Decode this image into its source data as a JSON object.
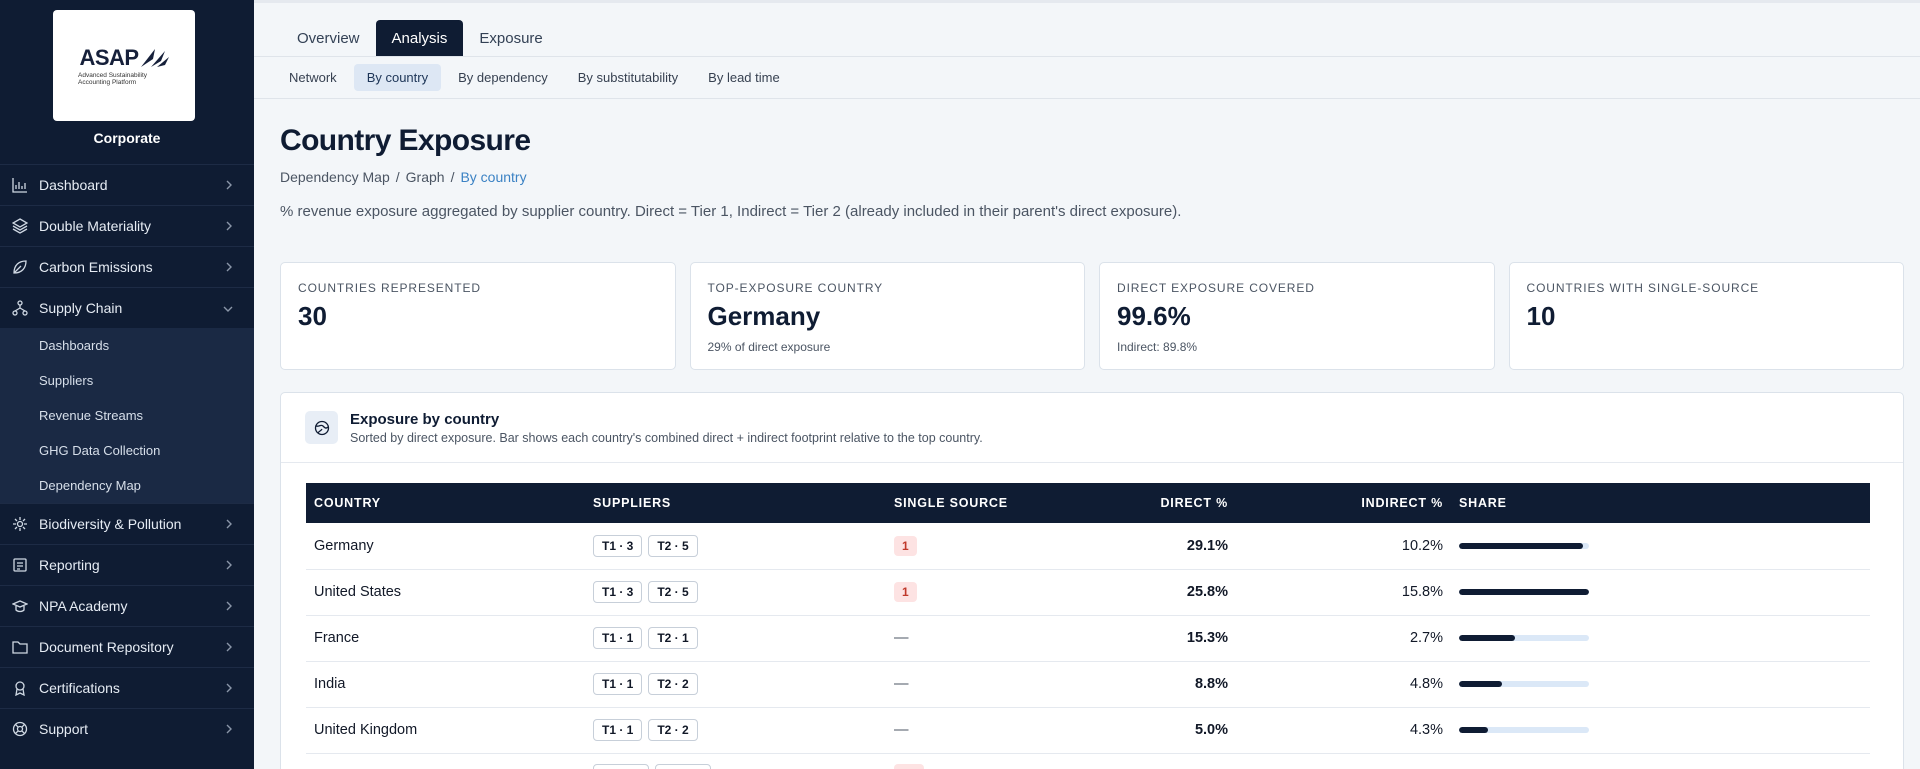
{
  "brand": {
    "logo_text": "ASAP",
    "logo_sub": "Advanced Sustainability Accounting Platform",
    "org": "Corporate"
  },
  "sidebar": {
    "items": [
      {
        "label": "Dashboard",
        "icon": "chart-icon"
      },
      {
        "label": "Double Materiality",
        "icon": "layers-icon"
      },
      {
        "label": "Carbon Emissions",
        "icon": "leaf-icon"
      },
      {
        "label": "Supply Chain",
        "icon": "network-icon",
        "expanded": true
      },
      {
        "label": "Biodiversity & Pollution",
        "icon": "bio-icon"
      },
      {
        "label": "Reporting",
        "icon": "report-icon"
      },
      {
        "label": "NPA Academy",
        "icon": "graduation-icon"
      },
      {
        "label": "Document Repository",
        "icon": "folder-icon"
      },
      {
        "label": "Certifications",
        "icon": "award-icon"
      },
      {
        "label": "Support",
        "icon": "lifebuoy-icon"
      }
    ],
    "supply_chain_sub": [
      "Dashboards",
      "Suppliers",
      "Revenue Streams",
      "GHG Data Collection",
      "Dependency Map"
    ]
  },
  "tabs": [
    "Overview",
    "Analysis",
    "Exposure"
  ],
  "active_tab": "Analysis",
  "subtabs": [
    "Network",
    "By country",
    "By dependency",
    "By substitutability",
    "By lead time"
  ],
  "active_subtab": "By country",
  "page": {
    "title": "Country Exposure",
    "breadcrumb": [
      "Dependency Map",
      "Graph",
      "By country"
    ],
    "description": "% revenue exposure aggregated by supplier country. Direct = Tier 1, Indirect = Tier 2 (already included in their parent's direct exposure)."
  },
  "kpis": [
    {
      "label": "COUNTRIES REPRESENTED",
      "value": "30",
      "note": ""
    },
    {
      "label": "TOP-EXPOSURE COUNTRY",
      "value": "Germany",
      "note": "29% of direct exposure"
    },
    {
      "label": "DIRECT EXPOSURE COVERED",
      "value": "99.6%",
      "note": "Indirect: 89.8%"
    },
    {
      "label": "COUNTRIES WITH SINGLE-SOURCE",
      "value": "10",
      "note": ""
    }
  ],
  "panel": {
    "title": "Exposure by country",
    "subtitle": "Sorted by direct exposure. Bar shows each country's combined direct + indirect footprint relative to the top country."
  },
  "table": {
    "headers": [
      "COUNTRY",
      "SUPPLIERS",
      "SINGLE SOURCE",
      "DIRECT %",
      "INDIRECT %",
      "SHARE"
    ],
    "rows": [
      {
        "country": "Germany",
        "t1": "T1 · 3",
        "t2": "T2 · 5",
        "single": "1",
        "direct": "29.1%",
        "indirect": "10.2%",
        "share": 0.95
      },
      {
        "country": "United States",
        "t1": "T1 · 3",
        "t2": "T2 · 5",
        "single": "1",
        "direct": "25.8%",
        "indirect": "15.8%",
        "share": 1.0
      },
      {
        "country": "France",
        "t1": "T1 · 1",
        "t2": "T2 · 1",
        "single": "—",
        "direct": "15.3%",
        "indirect": "2.7%",
        "share": 0.43
      },
      {
        "country": "India",
        "t1": "T1 · 1",
        "t2": "T2 · 2",
        "single": "—",
        "direct": "8.8%",
        "indirect": "4.8%",
        "share": 0.33
      },
      {
        "country": "United Kingdom",
        "t1": "T1 · 1",
        "t2": "T2 · 2",
        "single": "—",
        "direct": "5.0%",
        "indirect": "4.3%",
        "share": 0.22
      },
      {
        "country": "",
        "t1": "",
        "t2": "",
        "single": "",
        "direct": "",
        "indirect": "",
        "share": 0
      }
    ]
  }
}
